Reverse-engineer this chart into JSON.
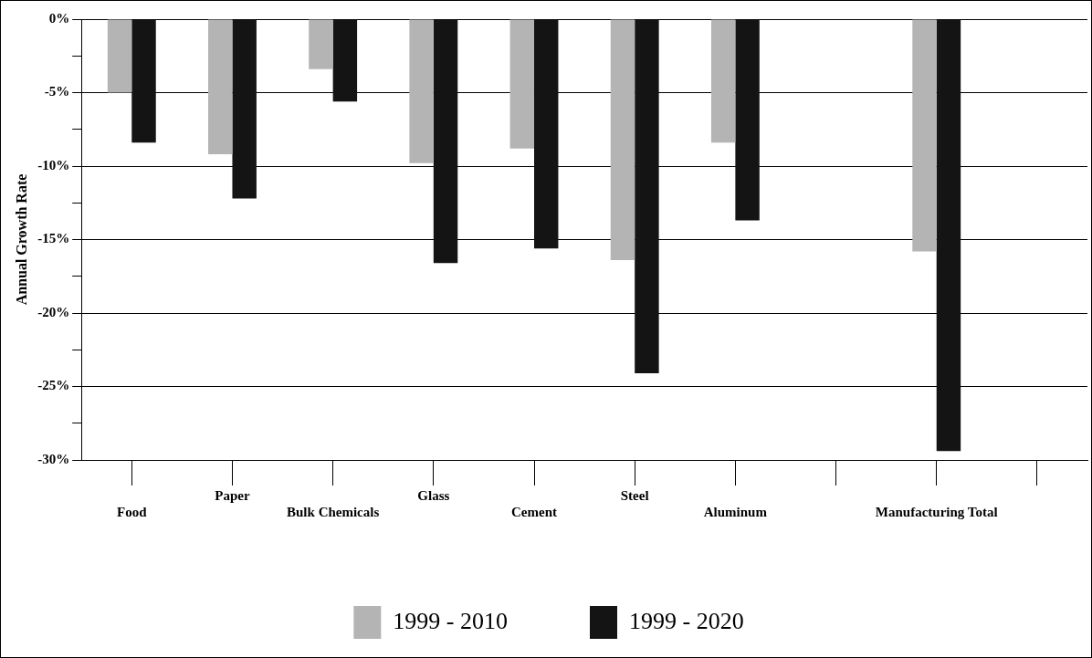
{
  "chart_data": {
    "type": "bar",
    "ylabel": "Annual Growth Rate",
    "categories": [
      "Food",
      "Paper",
      "Bulk Chemicals",
      "Glass",
      "Cement",
      "Steel",
      "Aluminum",
      null,
      "Manufacturing Total",
      null
    ],
    "series": [
      {
        "name": "1999 - 2010",
        "color": "#b4b4b4",
        "values": [
          -5.0,
          -9.2,
          -3.4,
          -9.8,
          -8.8,
          -16.4,
          -8.4,
          null,
          -15.8,
          null
        ]
      },
      {
        "name": "1999 - 2020",
        "color": "#141414",
        "values": [
          -8.4,
          -12.2,
          -5.6,
          -16.6,
          -15.6,
          -24.1,
          -13.7,
          null,
          -29.4,
          null
        ]
      }
    ],
    "ylim": [
      -30,
      0
    ],
    "yticks": [
      {
        "value": 0,
        "label": "0%"
      },
      {
        "value": -2.5,
        "label": null
      },
      {
        "value": -5,
        "label": "-5%"
      },
      {
        "value": -7.5,
        "label": null
      },
      {
        "value": -10,
        "label": "-10%"
      },
      {
        "value": -12.5,
        "label": null
      },
      {
        "value": -15,
        "label": "-15%"
      },
      {
        "value": -17.5,
        "label": null
      },
      {
        "value": -20,
        "label": "-20%"
      },
      {
        "value": -22.5,
        "label": null
      },
      {
        "value": -25,
        "label": "-25%"
      },
      {
        "value": -27.5,
        "label": null
      },
      {
        "value": -30,
        "label": "-30%"
      }
    ],
    "grid": "y",
    "legend": "bottom"
  }
}
